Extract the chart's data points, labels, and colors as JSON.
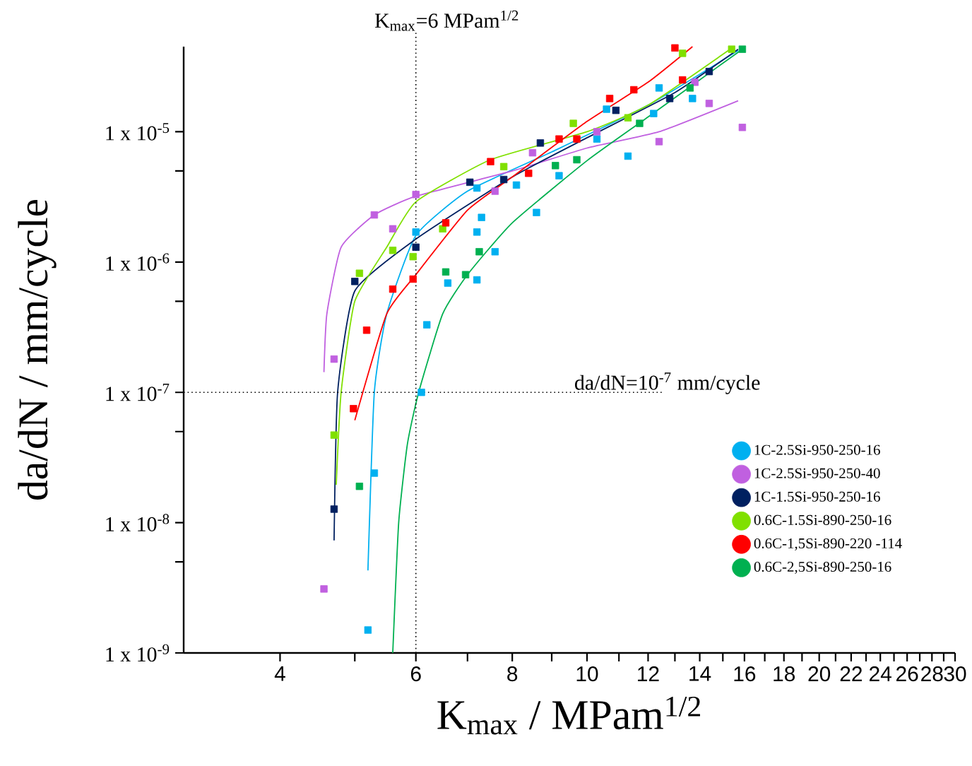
{
  "chart_data": {
    "type": "scatter",
    "xlabel": "K$_{max}$ / MPam$^{1/2}$",
    "ylabel": "da/dN / mm/cycle",
    "log": "xy",
    "grid": false,
    "legend": "bottom right",
    "marker": "square",
    "xlim": [
      3,
      30
    ],
    "xticks": [
      4,
      {
        "value": 5,
        "label": null
      },
      6,
      {
        "value": 7,
        "label": null
      },
      8,
      {
        "value": 9,
        "label": null
      },
      10,
      {
        "value": 11,
        "label": null
      },
      12,
      {
        "value": 13,
        "label": null
      },
      14,
      {
        "value": 15,
        "label": null
      },
      16,
      {
        "value": 17,
        "label": null
      },
      18,
      {
        "value": 19,
        "label": null
      },
      20,
      {
        "value": 21,
        "label": null
      },
      22,
      {
        "value": 23,
        "label": null
      },
      24,
      {
        "value": 25,
        "label": null
      },
      26,
      {
        "value": 27,
        "label": null
      },
      28,
      {
        "value": 29,
        "label": null
      },
      30
    ],
    "ylim": [
      1e-09,
      4.5e-05
    ],
    "yticks": [
      {
        "value": 1e-09,
        "label": "1 x 10$^{-9}$"
      },
      {
        "value": 5e-09,
        "label": null
      },
      {
        "value": 1e-08,
        "label": "1 x 10$^{-8}$"
      },
      {
        "value": 5e-08,
        "label": null
      },
      {
        "value": 1e-07,
        "label": "1 x 10$^{-7}$"
      },
      {
        "value": 5e-07,
        "label": null
      },
      {
        "value": 1e-06,
        "label": "1 x 10$^{-6}$"
      },
      {
        "value": 5e-06,
        "label": null
      },
      {
        "value": 1e-05,
        "label": "1 x 10$^{-5}$"
      }
    ],
    "ref_lines": [
      {
        "axis": "x",
        "value": 6,
        "label": "K$_{max}$=6 MPam$^{1/2}$",
        "line_style": "dotted",
        "color": "#000000"
      },
      {
        "axis": "y",
        "value": 1e-07,
        "line_style": "dotted",
        "color": "#000000"
      }
    ],
    "annotations": [
      "da/dN=10$^{-7}$ mm/cycle"
    ],
    "series": [
      {
        "name": "1C-2.5Si-950-250-16",
        "color": "#00b0f0",
        "x": [
          5.2,
          5.3,
          6.0,
          6.1,
          6.2,
          6.6,
          7.2,
          7.2,
          7.2,
          7.3,
          7.6,
          8.1,
          8.6,
          9.2,
          10.3,
          10.6,
          11.3,
          12.2,
          12.4,
          13.7
        ],
        "values": [
          1.5e-09,
          2.4e-08,
          1.7e-06,
          1e-07,
          3.3e-07,
          6.9e-07,
          3.7e-06,
          1.7e-06,
          7.3e-07,
          2.2e-06,
          1.2e-06,
          3.9e-06,
          2.4e-06,
          4.6e-06,
          8.8e-06,
          1.49e-05,
          6.5e-06,
          1.38e-05,
          2.17e-05,
          1.8e-05
        ]
      },
      {
        "name": "1C-2.5Si-950-250-40",
        "color": "#c060e0",
        "x": [
          4.56,
          4.7,
          5.3,
          5.6,
          6.0,
          7.6,
          8.5,
          10.3,
          12.4,
          13.8,
          14.4,
          15.9
        ],
        "values": [
          3.1e-09,
          1.8e-07,
          2.3e-06,
          1.8e-06,
          3.3e-06,
          3.5e-06,
          6.9e-06,
          1e-05,
          8.4e-06,
          2.4e-05,
          1.65e-05,
          1.08e-05
        ]
      },
      {
        "name": "1C-1.5Si-950-250-16",
        "color": "#002060",
        "x": [
          4.7,
          5.0,
          6.0,
          7.05,
          7.8,
          8.7,
          10.9,
          12.8,
          14.4
        ],
        "values": [
          1.27e-08,
          7.1e-07,
          1.3e-06,
          4.1e-06,
          4.3e-06,
          8.2e-06,
          1.46e-05,
          1.8e-05,
          2.9e-05
        ]
      },
      {
        "name": "0.6C-1.5Si-890-250-16",
        "color": "#80e000",
        "x": [
          4.7,
          5.07,
          5.6,
          5.95,
          6.5,
          7.8,
          9.6,
          11.3,
          13.3,
          15.4
        ],
        "values": [
          4.7e-08,
          8.2e-07,
          1.23e-06,
          1.1e-06,
          1.8e-06,
          5.4e-06,
          1.16e-05,
          1.28e-05,
          4e-05,
          4.3e-05
        ]
      },
      {
        "name": "0.6C-1,5Si-890-220 -114",
        "color": "#ff0000",
        "x": [
          4.98,
          5.18,
          5.6,
          5.95,
          6.56,
          7.5,
          8.4,
          9.2,
          9.7,
          10.7,
          11.5,
          13.0,
          13.3
        ],
        "values": [
          7.5e-08,
          3e-07,
          6.2e-07,
          7.4e-07,
          2e-06,
          5.9e-06,
          4.8e-06,
          8.8e-06,
          8.8e-06,
          1.8e-05,
          2.1e-05,
          4.4e-05,
          2.5e-05
        ]
      },
      {
        "name": "0.6C-2,5Si-890-250-16",
        "color": "#00b050",
        "x": [
          5.07,
          6.56,
          6.96,
          7.25,
          9.1,
          9.7,
          11.7,
          13.6,
          15.9
        ],
        "values": [
          1.9e-08,
          8.4e-07,
          8e-07,
          1.2e-06,
          5.5e-06,
          6.1e-06,
          1.16e-05,
          2.17e-05,
          4.3e-05
        ]
      },
      {
        "type": "line",
        "marker": "none",
        "color": "#00b0f0",
        "x": [
          5.2,
          5.3,
          5.5,
          6.0,
          7.0,
          9.0,
          12.0,
          15.7
        ],
        "values": [
          4.3e-09,
          1e-07,
          4e-07,
          1.6e-06,
          3.5e-06,
          7e-06,
          1.6e-05,
          4.2e-05
        ]
      },
      {
        "type": "line",
        "marker": "none",
        "color": "#c060e0",
        "x": [
          4.56,
          4.6,
          4.8,
          5.3,
          6.0,
          8.0,
          10.0,
          12.4,
          15.7
        ],
        "values": [
          1.43e-07,
          4e-07,
          1.3e-06,
          2.3e-06,
          3.2e-06,
          5e-06,
          7.5e-06,
          1e-05,
          1.73e-05
        ]
      },
      {
        "type": "line",
        "marker": "none",
        "color": "#002060",
        "x": [
          4.7,
          4.75,
          5.0,
          6.0,
          8.0,
          10.0,
          13.0,
          15.7
        ],
        "values": [
          7.3e-09,
          1e-07,
          6e-07,
          1.5e-06,
          4.5e-06,
          9e-06,
          2e-05,
          4.3e-05
        ]
      },
      {
        "type": "line",
        "marker": "none",
        "color": "#80e000",
        "x": [
          4.73,
          4.8,
          5.0,
          5.5,
          6.0,
          7.5,
          10.0,
          12.0,
          15.5
        ],
        "values": [
          1.95e-08,
          1e-07,
          5e-07,
          1.3e-06,
          2.9e-06,
          6.1e-06,
          1e-05,
          1.6e-05,
          4.5e-05
        ]
      },
      {
        "type": "line",
        "marker": "none",
        "color": "#ff0000",
        "x": [
          5.0,
          5.5,
          6.0,
          7.0,
          8.0,
          10.0,
          12.0,
          13.7
        ],
        "values": [
          6.1e-08,
          4e-07,
          8e-07,
          2.5e-06,
          4.5e-06,
          1.2e-05,
          2.4e-05,
          4.5e-05
        ]
      },
      {
        "type": "line",
        "marker": "none",
        "color": "#00b050",
        "x": [
          5.6,
          5.7,
          5.85,
          6.05,
          6.5,
          7.0,
          8.0,
          10.0,
          12.0,
          15.9
        ],
        "values": [
          1e-09,
          1e-08,
          4e-08,
          1e-07,
          4e-07,
          8e-07,
          2e-06,
          6e-06,
          1.3e-05,
          4.3e-05
        ]
      }
    ]
  }
}
